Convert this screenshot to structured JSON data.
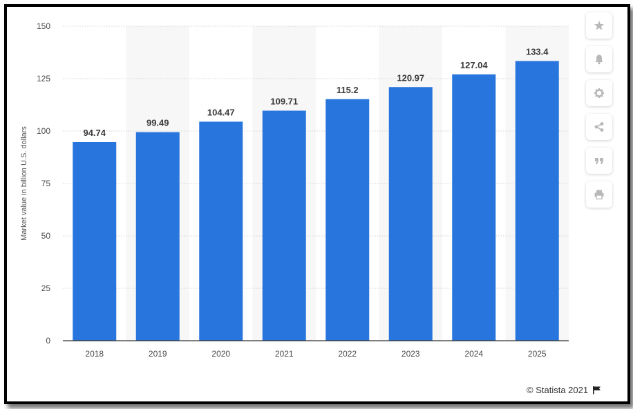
{
  "chart_data": {
    "type": "bar",
    "categories": [
      "2018",
      "2019",
      "2020",
      "2021",
      "2022",
      "2023",
      "2024",
      "2025"
    ],
    "values": [
      94.74,
      99.49,
      104.47,
      109.71,
      115.2,
      120.97,
      127.04,
      133.4
    ],
    "value_labels": [
      "94.74",
      "99.49",
      "104.47",
      "109.71",
      "115.2",
      "120.97",
      "127.04",
      "133.4"
    ],
    "title": "",
    "xlabel": "",
    "ylabel": "Market value in billion U.S. dollars",
    "ylim": [
      0,
      150
    ],
    "yticks": [
      0,
      25,
      50,
      75,
      100,
      125,
      150
    ],
    "grid": true,
    "bar_color": "#2876dd"
  },
  "toolbar": {
    "icons": [
      "star-icon",
      "bell-icon",
      "gear-icon",
      "share-icon",
      "quote-icon",
      "print-icon"
    ]
  },
  "credit": {
    "text": "© Statista 2021"
  }
}
